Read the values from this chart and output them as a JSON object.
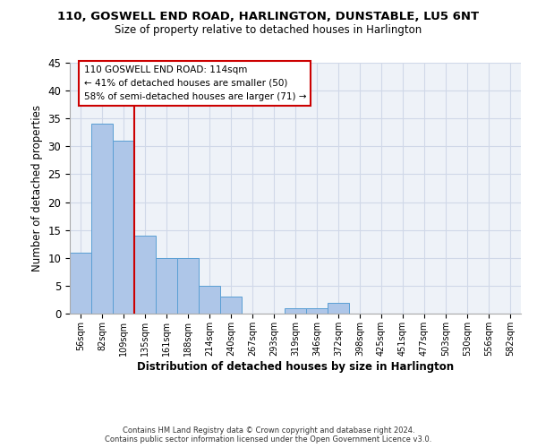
{
  "title_line1": "110, GOSWELL END ROAD, HARLINGTON, DUNSTABLE, LU5 6NT",
  "title_line2": "Size of property relative to detached houses in Harlington",
  "xlabel": "Distribution of detached houses by size in Harlington",
  "ylabel": "Number of detached properties",
  "bar_categories": [
    "56sqm",
    "82sqm",
    "109sqm",
    "135sqm",
    "161sqm",
    "188sqm",
    "214sqm",
    "240sqm",
    "267sqm",
    "293sqm",
    "319sqm",
    "346sqm",
    "372sqm",
    "398sqm",
    "425sqm",
    "451sqm",
    "477sqm",
    "503sqm",
    "530sqm",
    "556sqm",
    "582sqm"
  ],
  "bar_values": [
    11,
    34,
    31,
    14,
    10,
    10,
    5,
    3,
    0,
    0,
    1,
    1,
    2,
    0,
    0,
    0,
    0,
    0,
    0,
    0,
    0
  ],
  "bar_color": "#aec6e8",
  "bar_edgecolor": "#5a9fd4",
  "ylim": [
    0,
    45
  ],
  "yticks": [
    0,
    5,
    10,
    15,
    20,
    25,
    30,
    35,
    40,
    45
  ],
  "vline_x_index": 2,
  "vline_color": "#cc0000",
  "annotation_box_text": "110 GOSWELL END ROAD: 114sqm\n← 41% of detached houses are smaller (50)\n58% of semi-detached houses are larger (71) →",
  "footer_text": "Contains HM Land Registry data © Crown copyright and database right 2024.\nContains public sector information licensed under the Open Government Licence v3.0.",
  "bg_color": "#eef2f8",
  "grid_color": "#d0d8e8"
}
